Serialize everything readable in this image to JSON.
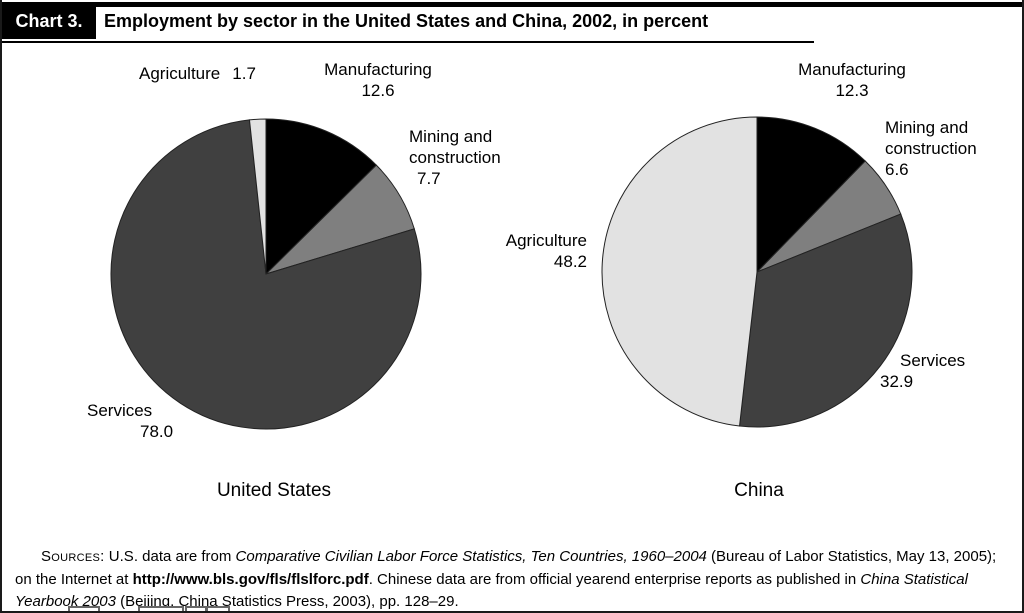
{
  "header": {
    "chart_number": "Chart 3.",
    "title": "Employment by sector in the United States and China, 2002, in percent"
  },
  "chart_data": [
    {
      "type": "pie",
      "title": "United States",
      "start_angle_deg": 0,
      "direction": "clockwise",
      "slices": [
        {
          "label": "Manufacturing",
          "value": 12.6,
          "display": "12.6",
          "color": "#000000"
        },
        {
          "label": "Mining and construction",
          "value": 7.7,
          "display": "7.7",
          "color": "#7f7f7f"
        },
        {
          "label": "Services",
          "value": 78.0,
          "display": "78.0",
          "color": "#404040"
        },
        {
          "label": "Agriculture",
          "value": 1.7,
          "display": "1.7",
          "color": "#e2e2e2"
        }
      ]
    },
    {
      "type": "pie",
      "title": "China",
      "start_angle_deg": 0,
      "direction": "clockwise",
      "slices": [
        {
          "label": "Manufacturing",
          "value": 12.3,
          "display": "12.3",
          "color": "#000000"
        },
        {
          "label": "Mining and construction",
          "value": 6.6,
          "display": "6.6",
          "color": "#7f7f7f"
        },
        {
          "label": "Services",
          "value": 32.9,
          "display": "32.9",
          "color": "#404040"
        },
        {
          "label": "Agriculture",
          "value": 48.2,
          "display": "48.2",
          "color": "#e2e2e2"
        }
      ]
    }
  ],
  "sources": {
    "label": "Sources:",
    "seg_us": " U.S. data are from ",
    "title_us": "Comparative Civilian Labor Force Statistics, Ten Countries, 1960–2004",
    "seg_mid": " (Bureau of Labor Statistics, May 13, 2005); on the Internet at ",
    "url": "http://www.bls.gov/fls/flslforc.pdf",
    "seg_cn": ". Chinese data are from official yearend enterprise reports as published in ",
    "title_cn": "China Statistical Yearbook 2003",
    "seg_end": " (Beijing, China Statistics Press, 2003), pp. 128–29."
  }
}
